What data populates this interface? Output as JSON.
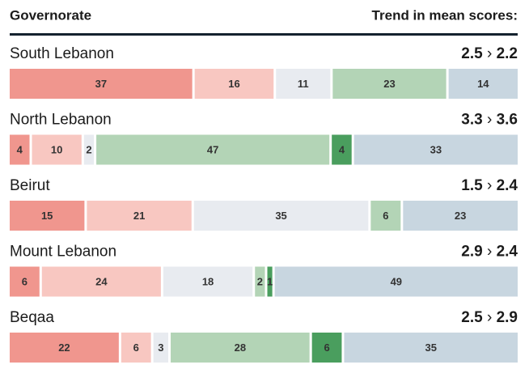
{
  "header": {
    "left": "Governorate",
    "right": "Trend in mean scores:"
  },
  "chart_data": {
    "type": "stacked-bar",
    "orientation": "horizontal",
    "categories": [
      "South Lebanon",
      "North Lebanon",
      "Beirut",
      "Mount Lebanon",
      "Beqaa"
    ],
    "trend_separator": "›",
    "trend": [
      {
        "from": 2.5,
        "to": 2.2
      },
      {
        "from": 3.3,
        "to": 3.6
      },
      {
        "from": 1.5,
        "to": 2.4
      },
      {
        "from": 2.9,
        "to": 2.4
      },
      {
        "from": 2.5,
        "to": 2.9
      }
    ],
    "series": [
      {
        "color": "#f0968e",
        "values": [
          37,
          4,
          15,
          6,
          22
        ]
      },
      {
        "color": "#f8c7c1",
        "values": [
          16,
          10,
          21,
          24,
          6
        ]
      },
      {
        "color": "#e8ebf0",
        "values": [
          11,
          2,
          35,
          18,
          3
        ]
      },
      {
        "color": "#b3d4b6",
        "values": [
          23,
          47,
          6,
          2,
          28
        ]
      },
      {
        "color": "#4a9e5e",
        "values": [
          null,
          4,
          null,
          1,
          6
        ]
      },
      {
        "color": "#c8d6e0",
        "values": [
          14,
          33,
          23,
          49,
          35
        ]
      }
    ]
  }
}
